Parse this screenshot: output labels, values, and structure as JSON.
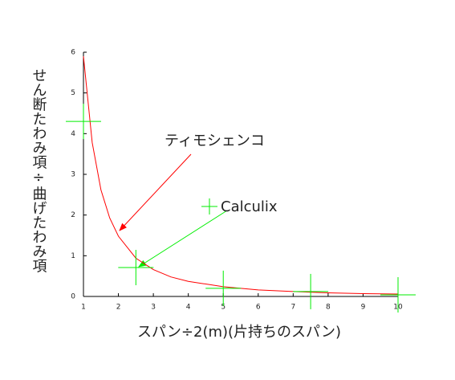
{
  "chart_data": {
    "type": "line",
    "xlabel": "スパン÷2(m)(片持ちのスパン)",
    "ylabel": "せん断たわみ項÷曲げたわみ項",
    "xlim": [
      1,
      10
    ],
    "xticks": [
      1,
      2,
      3,
      4,
      5,
      6,
      7,
      8,
      9,
      10
    ],
    "ylim": [
      0,
      6
    ],
    "yticks": [
      0,
      1,
      2,
      3,
      4,
      5,
      6
    ],
    "series": [
      {
        "name": "ティモシェンコ",
        "color": "#ff0000",
        "style": "line",
        "x": [
          1,
          1.25,
          1.5,
          1.75,
          2,
          2.5,
          3,
          3.5,
          4,
          5,
          6,
          7,
          8,
          9,
          10
        ],
        "values": [
          5.9,
          3.78,
          2.62,
          1.93,
          1.48,
          0.94,
          0.66,
          0.48,
          0.37,
          0.24,
          0.16,
          0.12,
          0.09,
          0.07,
          0.06
        ]
      },
      {
        "name": "Calculix",
        "color": "#00ee00",
        "style": "cross",
        "x": [
          1,
          2.5,
          5,
          7.5,
          10
        ],
        "values": [
          4.3,
          0.71,
          0.2,
          0.12,
          0.04
        ]
      }
    ]
  }
}
